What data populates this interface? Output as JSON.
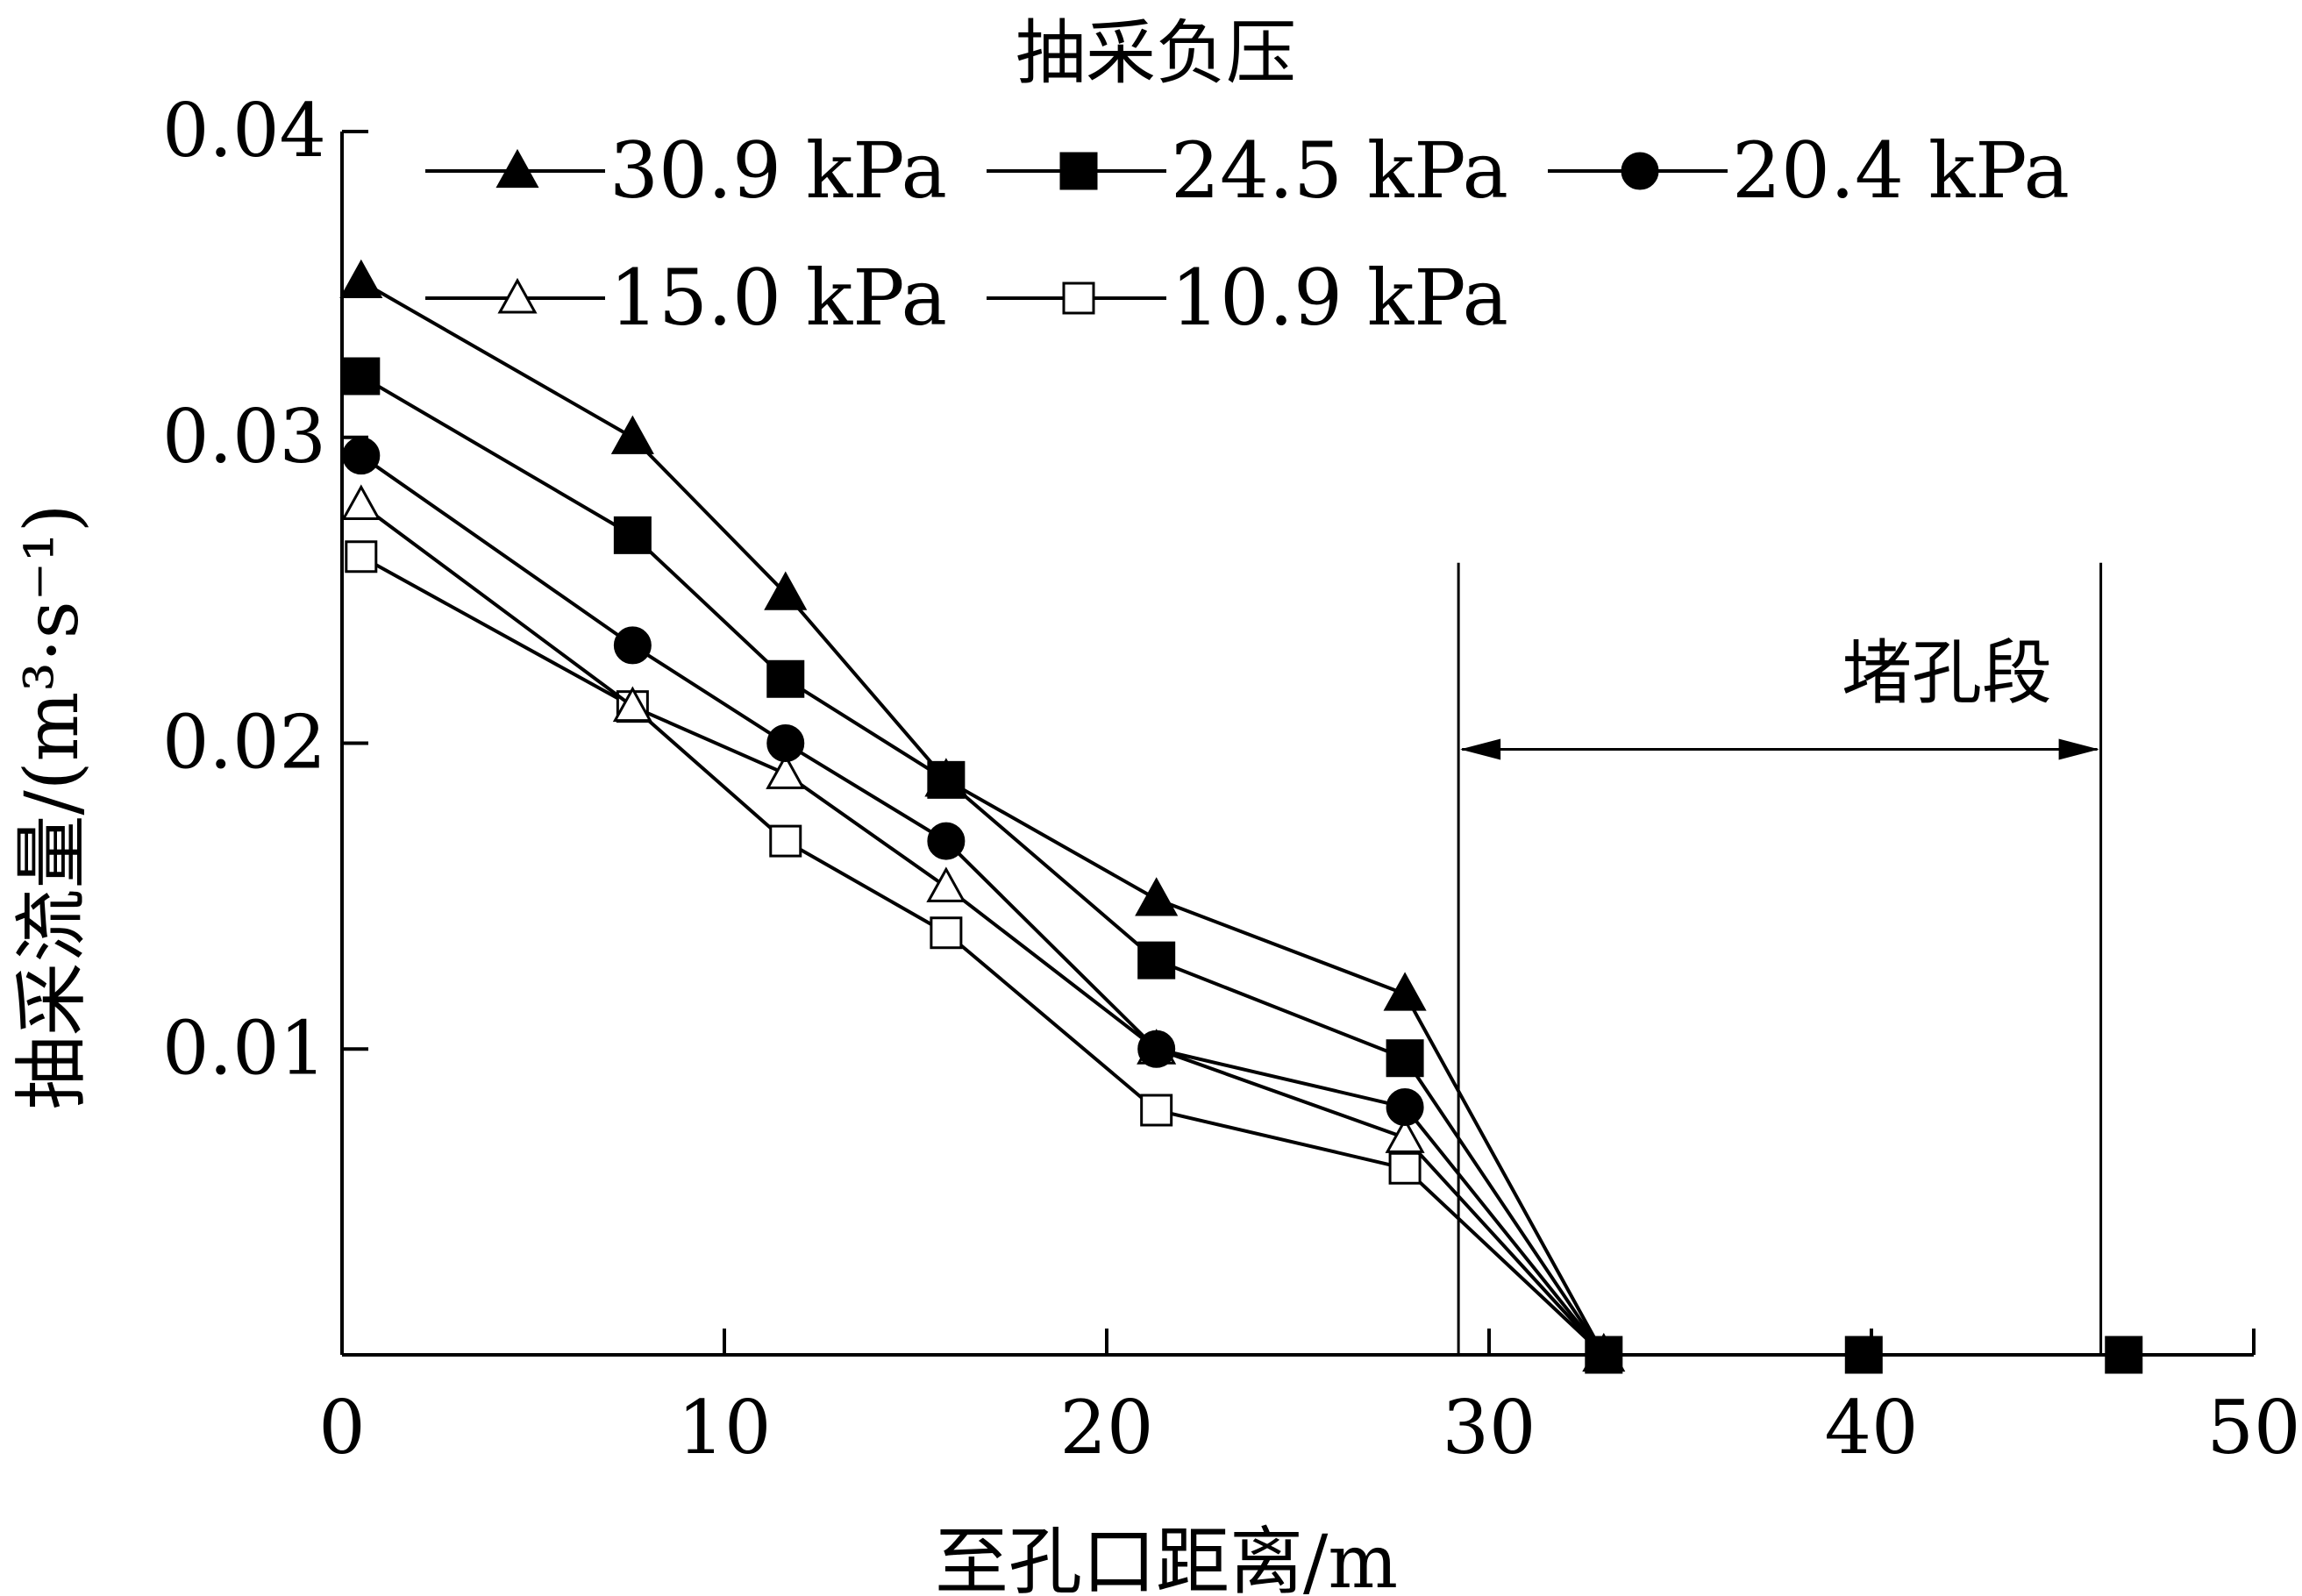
{
  "chart_data": {
    "type": "line",
    "xlabel": "至孔口距离/m",
    "ylabel": "抽采流量/(m³·s⁻¹)",
    "xlim": [
      0,
      50
    ],
    "ylim": [
      0,
      0.04
    ],
    "xticks": [
      0,
      10,
      20,
      30,
      40,
      50
    ],
    "yticks": [
      0.01,
      0.02,
      0.03,
      0.04
    ],
    "xtick_labels": [
      "0",
      "10",
      "20",
      "30",
      "40",
      "50"
    ],
    "ytick_labels": [
      "0.01",
      "0.02",
      "0.03",
      "0.04"
    ],
    "grid": false,
    "legend": {
      "title": "抽采负压",
      "placement": "top"
    },
    "annotation": {
      "text": "堵孔段",
      "x_start": 29.2,
      "x_end": 46.0,
      "y": 0.0198
    },
    "x": [
      0.5,
      7.6,
      11.6,
      15.8,
      21.3,
      27.8,
      33.0,
      39.8,
      46.6
    ],
    "series": [
      {
        "name": "30.9 kPa",
        "marker": "triangle-filled",
        "values": [
          0.0351,
          0.03,
          0.0249,
          0.0188,
          0.0149,
          0.0118,
          0,
          null,
          null
        ]
      },
      {
        "name": "24.5 kPa",
        "marker": "square-filled",
        "values": [
          0.032,
          0.0268,
          0.0221,
          0.0188,
          0.0129,
          0.0097,
          0,
          0,
          0
        ]
      },
      {
        "name": "20.4 kPa",
        "marker": "circle-filled",
        "values": [
          0.0294,
          0.0232,
          0.02,
          0.0168,
          0.01,
          0.0081,
          0,
          null,
          null
        ]
      },
      {
        "name": "15.0 kPa",
        "marker": "triangle-open",
        "values": [
          0.0278,
          0.0212,
          0.019,
          0.0153,
          0.01,
          0.0071,
          0,
          null,
          null
        ]
      },
      {
        "name": "10.9 kPa",
        "marker": "square-open",
        "values": [
          0.0261,
          0.0212,
          0.0168,
          0.0138,
          0.008,
          0.0061,
          0,
          null,
          null
        ]
      }
    ]
  }
}
